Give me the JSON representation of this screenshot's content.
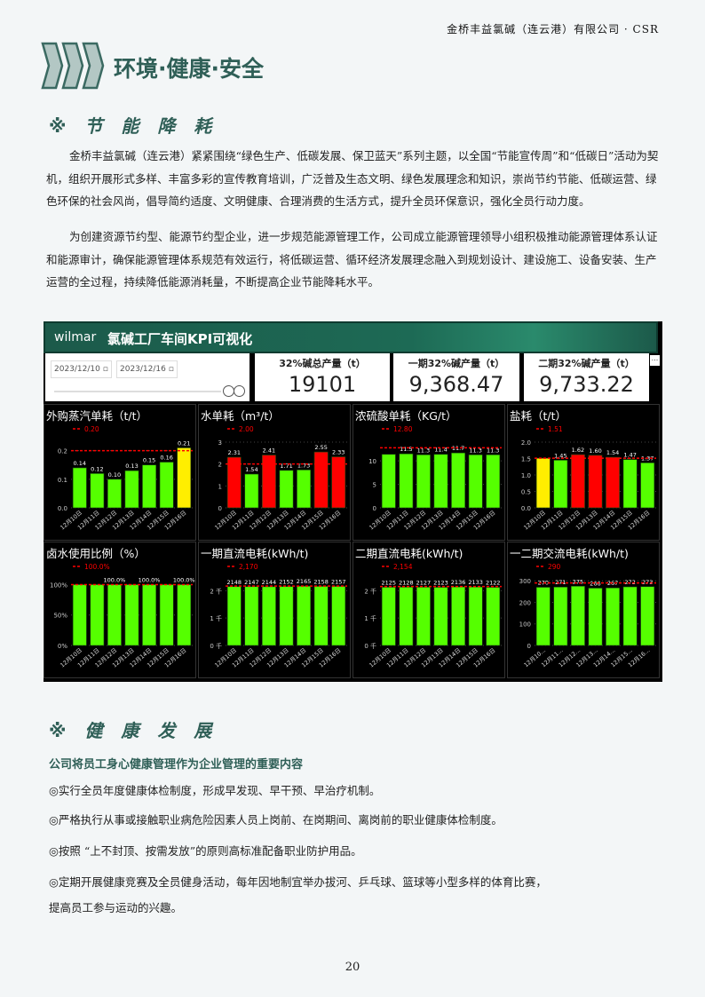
{
  "header": {
    "company": "金桥丰益氯碱（连云港）有限公司 · CSR",
    "section_title": "环境·健康·安全"
  },
  "energy": {
    "heading": "※ 节 能 降 耗",
    "p1": "金桥丰益氯碱（连云港）紧紧围绕“绿色生产、低碳发展、保卫蓝天”系列主题，以全国“节能宣传周”和“低碳日”活动为契机，组织开展形式多样、丰富多彩的宣传教育培训，广泛普及生态文明、绿色发展理念和知识，崇尚节约节能、低碳运营、绿色环保的社会风尚，倡导简约适度、文明健康、合理消费的生活方式，提升全员环保意识，强化全员行动力度。",
    "p2": "为创建资源节约型、能源节约型企业，进一步规范能源管理工作，公司成立能源管理领导小组积极推动能源管理体系认证和能源审计，确保能源管理体系规范有效运行，将低碳运营、循环经济发展理念融入到规划设计、建设施工、设备安装、生产运营的全过程，持续降低能源消耗量，不断提高企业节能降耗水平。"
  },
  "dashboard": {
    "logo": "wilmar",
    "title": "氯碱工厂车间KPI可视化",
    "date_start": "2023/12/10",
    "date_end": "2023/12/16",
    "more": "...",
    "kpis": [
      {
        "label": "32%碱总产量（t）",
        "value": "19101"
      },
      {
        "label": "一期32%碱产量（t）",
        "value": "9,368.47"
      },
      {
        "label": "二期32%碱产量（t）",
        "value": "9,733.22"
      }
    ]
  },
  "colors": {
    "green": "#55ff00",
    "red": "#ff0000",
    "yellow": "#ffee00",
    "target": "#ff0000"
  },
  "chart_data": [
    {
      "type": "bar",
      "title": "外购蒸汽单耗（t/t）",
      "categories": [
        "12月10日",
        "12月11日",
        "12月12日",
        "12月13日",
        "12月14日",
        "12月15日",
        "12月16日"
      ],
      "values": [
        0.14,
        0.12,
        0.1,
        0.13,
        0.15,
        0.16,
        0.21
      ],
      "labels": [
        "0.14",
        "0.12",
        "0.10",
        "0.13",
        "0.15",
        "0.16",
        "0.21"
      ],
      "bar_colors": [
        "green",
        "green",
        "green",
        "green",
        "green",
        "green",
        "yellow"
      ],
      "target": 0.2,
      "target_label": "0.20",
      "yticks": [
        0,
        0.1,
        0.2
      ],
      "ytick_labels": [
        "0.0",
        "0.1",
        "0.2"
      ],
      "ylim": [
        0,
        0.23
      ]
    },
    {
      "type": "bar",
      "title": "水单耗（m³/t）",
      "categories": [
        "12月10日",
        "12月11日",
        "12月12日",
        "12月13日",
        "12月14日",
        "12月15日",
        "12月16日"
      ],
      "values": [
        2.31,
        1.54,
        2.41,
        1.71,
        1.73,
        2.55,
        2.33
      ],
      "labels": [
        "2.31",
        "1.54",
        "2.41",
        "1.71",
        "1.73",
        "2.55",
        "2.33"
      ],
      "bar_colors": [
        "red",
        "green",
        "red",
        "green",
        "green",
        "red",
        "red"
      ],
      "target": 2.0,
      "target_label": "2.00",
      "yticks": [
        0,
        1,
        2,
        3
      ],
      "ytick_labels": [
        "0",
        "1",
        "2",
        "3"
      ],
      "ylim": [
        0,
        3
      ]
    },
    {
      "type": "bar",
      "title": "浓硫酸单耗（KG/t）",
      "categories": [
        "12月10日",
        "12月11日",
        "12月12日",
        "12月13日",
        "12月14日",
        "12月15日",
        "12月16日"
      ],
      "values": [
        11.4,
        11.5,
        11.3,
        11.4,
        11.7,
        11.3,
        11.3
      ],
      "labels": [
        "",
        "11.5",
        "11.3",
        "11.4",
        "11.7",
        "11.3",
        "11.3"
      ],
      "bar_colors": [
        "green",
        "green",
        "green",
        "green",
        "green",
        "green",
        "green"
      ],
      "target": 12.8,
      "target_label": "12.80",
      "yticks": [
        0,
        5,
        10
      ],
      "ytick_labels": [
        "0",
        "5",
        "10"
      ],
      "ylim": [
        0,
        14
      ]
    },
    {
      "type": "bar",
      "title": "盐耗（t/t）",
      "categories": [
        "12月10日",
        "12月11日",
        "12月12日",
        "12月13日",
        "12月14日",
        "12月15日",
        "12月16日"
      ],
      "values": [
        1.51,
        1.45,
        1.62,
        1.6,
        1.54,
        1.47,
        1.37
      ],
      "labels": [
        "",
        "1.45",
        "1.62",
        "1.60",
        "1.54",
        "1.47",
        "1.37"
      ],
      "bar_colors": [
        "yellow",
        "green",
        "red",
        "red",
        "red",
        "green",
        "green"
      ],
      "target": 1.51,
      "target_label": "1.51",
      "yticks": [
        0,
        0.5,
        1,
        1.5,
        2
      ],
      "ytick_labels": [
        "0.0",
        "0.5",
        "1.0",
        "1.5",
        "2.0"
      ],
      "ylim": [
        0,
        2
      ]
    },
    {
      "type": "bar",
      "title": "卤水使用比例（%）",
      "categories": [
        "12月10日",
        "12月11日",
        "12月12日",
        "12月13日",
        "12月14日",
        "12月15日",
        "12月16日"
      ],
      "values": [
        100,
        100,
        100,
        100,
        100,
        100,
        100
      ],
      "labels": [
        "",
        "",
        "100.0%",
        "",
        "100.0%",
        "",
        "100.0%"
      ],
      "bar_colors": [
        "green",
        "green",
        "green",
        "green",
        "green",
        "green",
        "green"
      ],
      "target": 100,
      "target_label": "100.0%",
      "yticks": [
        0,
        50,
        100
      ],
      "ytick_labels": [
        "0%",
        "50%",
        "100%"
      ],
      "ylim": [
        0,
        108
      ]
    },
    {
      "type": "bar",
      "title": "一期直流电耗(kWh/t)",
      "categories": [
        "12月10日",
        "12月11日",
        "12月12日",
        "12月13日",
        "12月14日",
        "12月15日",
        "12月16日"
      ],
      "values": [
        2148,
        2147,
        2144,
        2152,
        2165,
        2158,
        2157
      ],
      "labels": [
        "2148",
        "2147",
        "2144",
        "2152",
        "2165",
        "2158",
        "2157"
      ],
      "bar_colors": [
        "green",
        "green",
        "green",
        "green",
        "green",
        "green",
        "green"
      ],
      "target": 2170,
      "target_label": "2,170",
      "yticks": [
        0,
        1000,
        2000
      ],
      "ytick_labels": [
        "0 千",
        "1 千",
        "2 千"
      ],
      "ylim": [
        0,
        2400
      ]
    },
    {
      "type": "bar",
      "title": "二期直流电耗(kWh/t)",
      "categories": [
        "12月10日",
        "12月11日",
        "12月12日",
        "12月13日",
        "12月14日",
        "12月15日",
        "12月16日"
      ],
      "values": [
        2125,
        2128,
        2127,
        2123,
        2136,
        2133,
        2122
      ],
      "labels": [
        "2125",
        "2128",
        "2127",
        "2123",
        "2136",
        "2133",
        "2122"
      ],
      "bar_colors": [
        "green",
        "green",
        "green",
        "green",
        "green",
        "green",
        "green"
      ],
      "target": 2154,
      "target_label": "2,154",
      "yticks": [
        0,
        1000,
        2000
      ],
      "ytick_labels": [
        "0 千",
        "1 千",
        "2 千"
      ],
      "ylim": [
        0,
        2400
      ]
    },
    {
      "type": "bar",
      "title": "一二期交流电耗(kWh/t)",
      "categories": [
        "12月10...",
        "12月11...",
        "12月12...",
        "12月13...",
        "12月14...",
        "12月15...",
        "12月16..."
      ],
      "values": [
        270,
        271,
        275,
        266,
        267,
        272,
        273
      ],
      "labels": [
        "270",
        "271",
        "275",
        "266",
        "267",
        "272",
        "273"
      ],
      "bar_colors": [
        "green",
        "green",
        "green",
        "green",
        "green",
        "green",
        "green"
      ],
      "target": 290,
      "target_label": "290",
      "yticks": [
        0,
        100,
        200,
        300
      ],
      "ytick_labels": [
        "0",
        "100",
        "200",
        "300"
      ],
      "ylim": [
        0,
        305
      ]
    }
  ],
  "health": {
    "heading": "※ 健 康 发 展",
    "subtitle": "公司将员工身心健康管理作为企业管理的重要内容",
    "items": [
      "◎实行全员年度健康体检制度，形成早发现、早干预、早治疗机制。",
      "◎严格执行从事或接触职业病危险因素人员上岗前、在岗期间、离岗前的职业健康体检制度。",
      "◎按照 “上不封顶、按需发放”的原则高标准配备职业防护用品。",
      "◎定期开展健康竞赛及全员健身活动，每年因地制宜举办拔河、乒乓球、篮球等小型多样的体育比赛，",
      "提高员工参与运动的兴趣。"
    ]
  },
  "footer": {
    "page_number": "20"
  }
}
